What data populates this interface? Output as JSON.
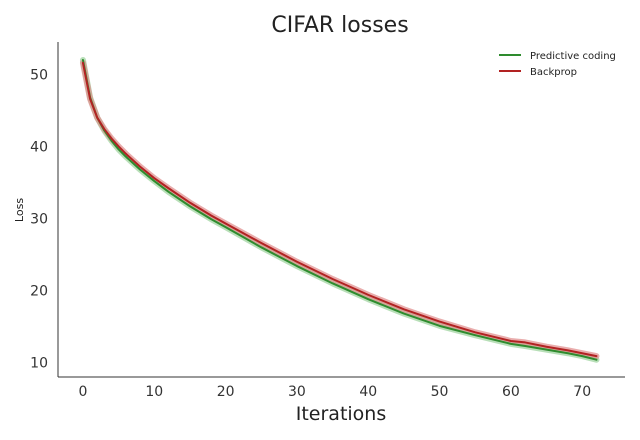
{
  "chart_data": {
    "type": "line",
    "title": "CIFAR losses",
    "xlabel": "Iterations",
    "ylabel": "Loss",
    "xlim": [
      -3.5,
      76
    ],
    "ylim": [
      8,
      54.5
    ],
    "xticks": [
      0,
      10,
      20,
      30,
      40,
      50,
      60,
      70
    ],
    "yticks": [
      10,
      20,
      30,
      40,
      50
    ],
    "grid": false,
    "legend": "top-right",
    "x": [
      0,
      1,
      2,
      3,
      4,
      5,
      6,
      8,
      10,
      12,
      15,
      18,
      20,
      25,
      30,
      35,
      40,
      45,
      50,
      55,
      60,
      62,
      65,
      68,
      70,
      72
    ],
    "series": [
      {
        "name": "Predictive coding",
        "color": "#2e8b2e",
        "band_color": "#9ad29a",
        "values": [
          52.0,
          46.8,
          44.0,
          42.2,
          40.8,
          39.6,
          38.6,
          36.8,
          35.2,
          33.7,
          31.7,
          29.9,
          28.8,
          26.0,
          23.4,
          21.0,
          18.8,
          16.8,
          15.1,
          13.8,
          12.6,
          12.3,
          11.8,
          11.3,
          10.9,
          10.4
        ]
      },
      {
        "name": "Backprop",
        "color": "#b22222",
        "band_color": "#e08a8a",
        "values": [
          51.6,
          46.6,
          44.0,
          42.4,
          41.1,
          40.0,
          39.0,
          37.2,
          35.6,
          34.2,
          32.2,
          30.4,
          29.3,
          26.6,
          24.0,
          21.6,
          19.4,
          17.4,
          15.7,
          14.2,
          13.0,
          12.8,
          12.2,
          11.7,
          11.3,
          10.9
        ]
      }
    ]
  }
}
